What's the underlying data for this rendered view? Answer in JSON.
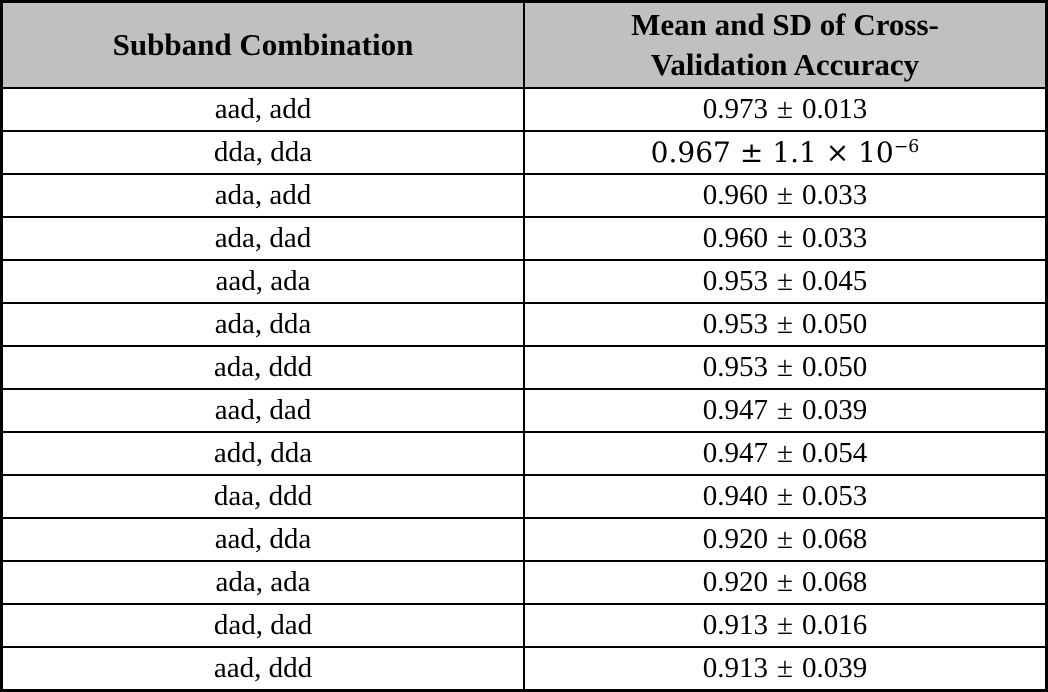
{
  "table": {
    "title": "subband-combination-accuracy-table",
    "style": {
      "header_bg": "#c0c0c0",
      "border_color": "#000000",
      "text_color": "#000000",
      "page_bg": "#ffffff"
    },
    "pm_sign": "±",
    "header": {
      "col1": "Subband Combination",
      "col2_lines": [
        "Mean and SD of Cross-",
        "Validation Accuracy"
      ]
    },
    "rows": [
      {
        "combination": "aad, add",
        "mean": "0.973",
        "sd": "0.013",
        "sd_exp": ""
      },
      {
        "combination": "dda, dda",
        "mean": "0.967",
        "sd": "1.1 × 10",
        "sd_exp": "−6"
      },
      {
        "combination": "ada, add",
        "mean": "0.960",
        "sd": "0.033",
        "sd_exp": ""
      },
      {
        "combination": "ada, dad",
        "mean": "0.960",
        "sd": "0.033",
        "sd_exp": ""
      },
      {
        "combination": "aad, ada",
        "mean": "0.953",
        "sd": "0.045",
        "sd_exp": ""
      },
      {
        "combination": "ada, dda",
        "mean": "0.953",
        "sd": "0.050",
        "sd_exp": ""
      },
      {
        "combination": "ada, ddd",
        "mean": "0.953",
        "sd": "0.050",
        "sd_exp": ""
      },
      {
        "combination": "aad, dad",
        "mean": "0.947",
        "sd": "0.039",
        "sd_exp": ""
      },
      {
        "combination": "add, dda",
        "mean": "0.947",
        "sd": "0.054",
        "sd_exp": ""
      },
      {
        "combination": "daa, ddd",
        "mean": "0.940",
        "sd": "0.053",
        "sd_exp": ""
      },
      {
        "combination": "aad, dda",
        "mean": "0.920",
        "sd": "0.068",
        "sd_exp": ""
      },
      {
        "combination": "ada, ada",
        "mean": "0.920",
        "sd": "0.068",
        "sd_exp": ""
      },
      {
        "combination": "dad, dad",
        "mean": "0.913",
        "sd": "0.016",
        "sd_exp": ""
      },
      {
        "combination": "aad, ddd",
        "mean": "0.913",
        "sd": "0.039",
        "sd_exp": ""
      }
    ]
  },
  "chart_data": {
    "type": "table",
    "title": "Mean and SD of Cross-Validation Accuracy by Subband Combination",
    "columns": [
      "Subband Combination",
      "Mean and SD of Cross-Validation Accuracy"
    ],
    "categories": [
      "aad, add",
      "dda, dda",
      "ada, add",
      "ada, dad",
      "aad, ada",
      "ada, dda",
      "ada, ddd",
      "aad, dad",
      "add, dda",
      "daa, ddd",
      "aad, dda",
      "ada, ada",
      "dad, dad",
      "aad, ddd"
    ],
    "series": [
      {
        "name": "mean_accuracy",
        "values": [
          0.973,
          0.967,
          0.96,
          0.96,
          0.953,
          0.953,
          0.953,
          0.947,
          0.947,
          0.94,
          0.92,
          0.92,
          0.913,
          0.913
        ]
      },
      {
        "name": "sd_accuracy",
        "values": [
          0.013,
          1.1e-06,
          0.033,
          0.033,
          0.045,
          0.05,
          0.05,
          0.039,
          0.054,
          0.053,
          0.068,
          0.068,
          0.016,
          0.039
        ]
      }
    ]
  }
}
